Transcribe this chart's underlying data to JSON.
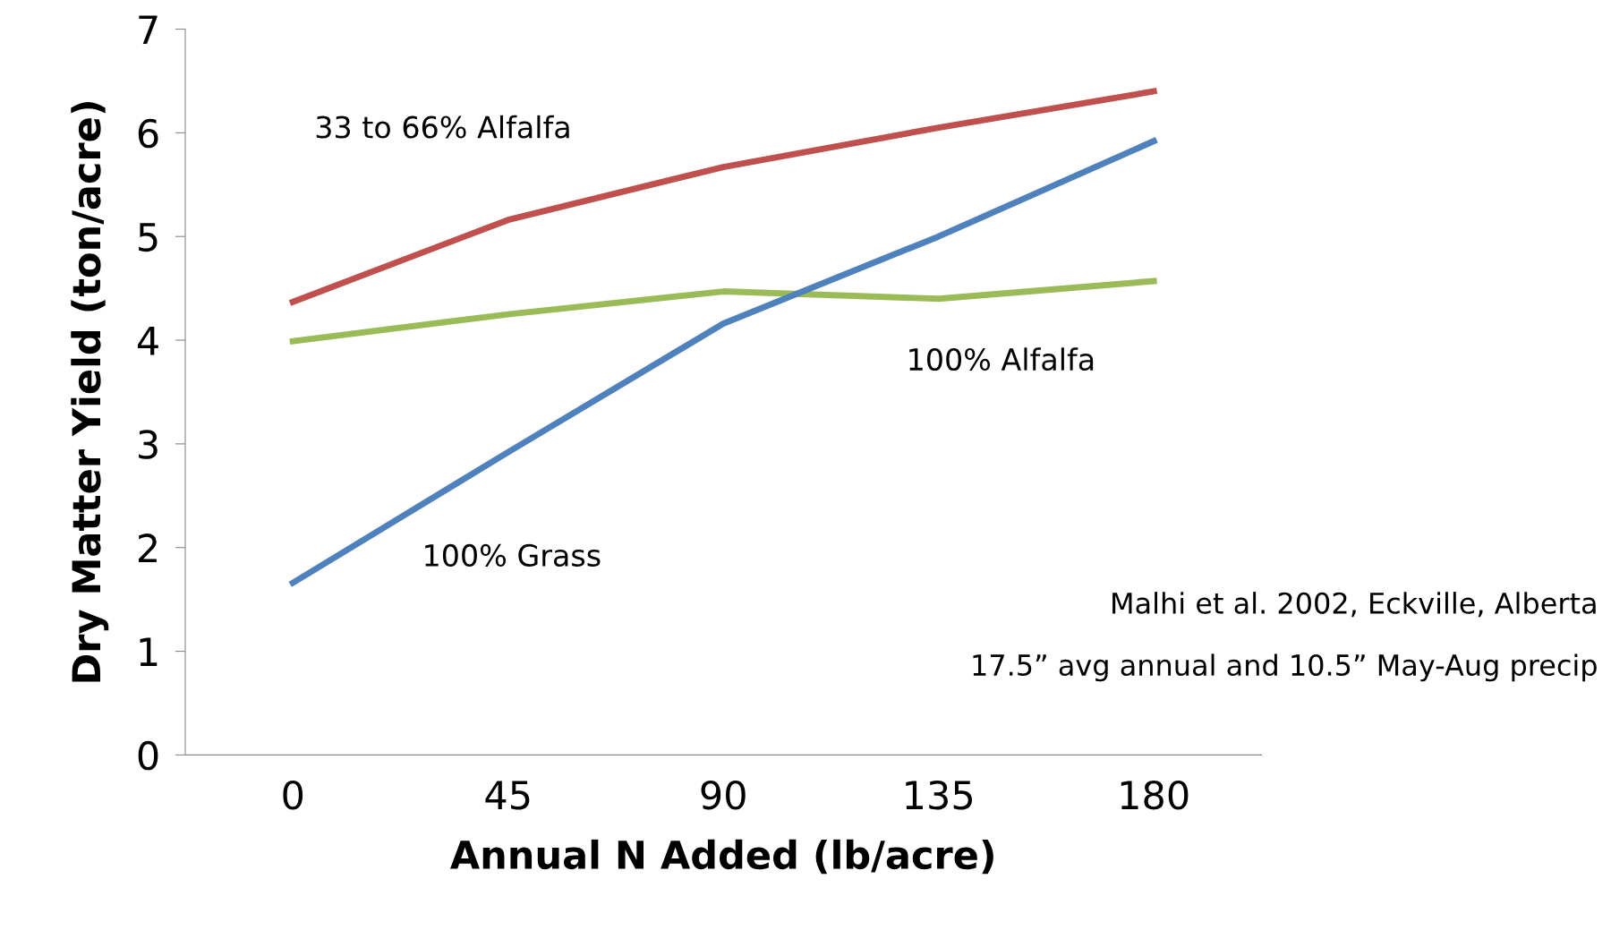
{
  "chart_data": {
    "type": "line",
    "xlabel": "Annual N Added (lb/acre)",
    "ylabel": "Dry Matter Yield (ton/acre)",
    "categories": [
      "0",
      "45",
      "90",
      "135",
      "180"
    ],
    "series": [
      {
        "name": "33 to 66% Alfalfa",
        "color": "#c0504d",
        "values": [
          4.37,
          5.16,
          5.67,
          6.05,
          6.4
        ]
      },
      {
        "name": "100% Alfalfa",
        "color": "#9bbb59",
        "values": [
          3.99,
          4.25,
          4.47,
          4.4,
          4.57
        ]
      },
      {
        "name": "100% Grass",
        "color": "#4f81bd",
        "values": [
          1.66,
          2.92,
          4.16,
          5.0,
          5.92
        ]
      }
    ],
    "ylim": [
      0,
      7
    ],
    "yticks": [
      0,
      1,
      2,
      3,
      4,
      5,
      6,
      7
    ],
    "grid": false,
    "legend": false,
    "marker": "none",
    "line_style": "solid",
    "annotations": [
      "Malhi et al. 2002, Eckville, Alberta",
      "17.5” avg annual and 10.5” May-Aug precip"
    ]
  }
}
